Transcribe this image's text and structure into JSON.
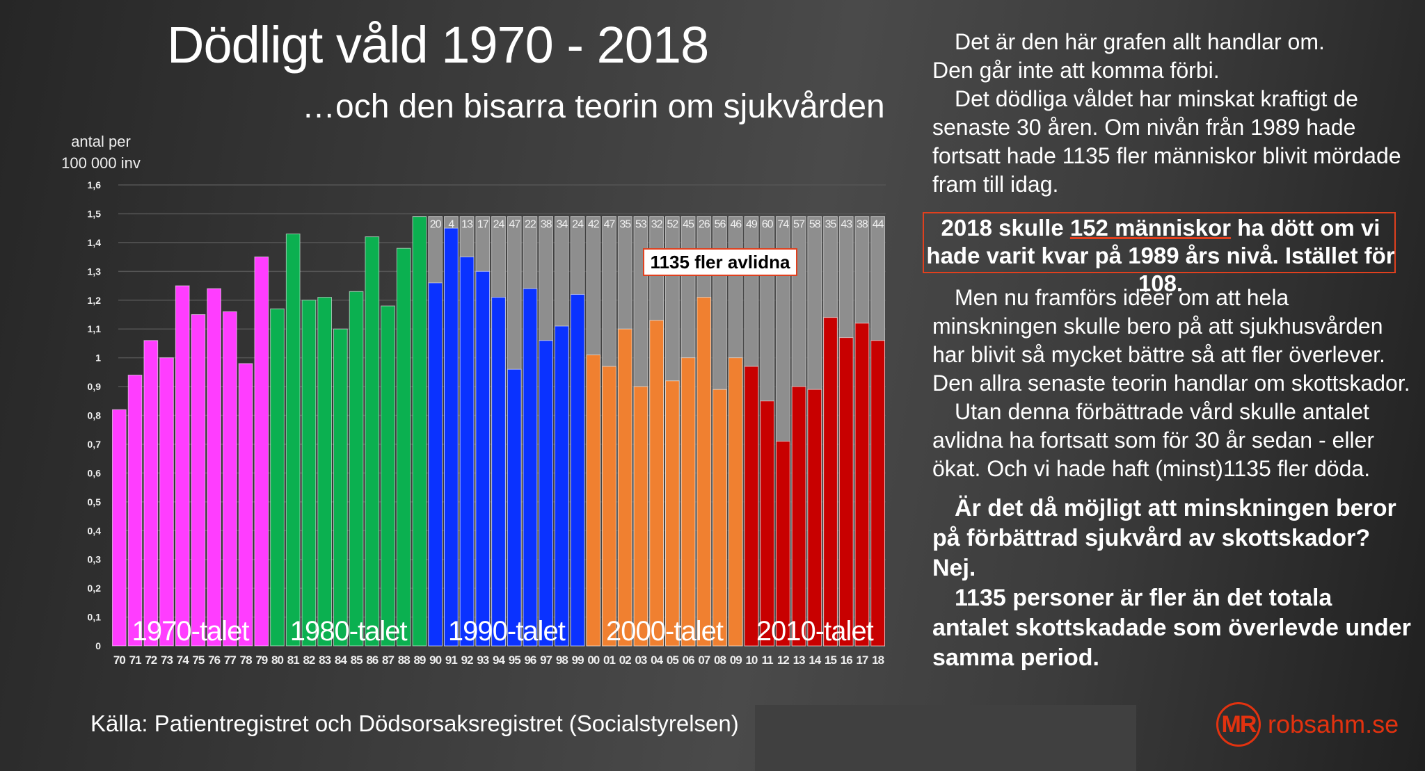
{
  "header": {
    "title": "Dödligt våld 1970 - 2018",
    "subtitle": "…och den bisarra teorin om sjukvården"
  },
  "chart_data": {
    "type": "bar",
    "title": "Dödligt våld 1970 - 2018",
    "ylabel_lines": [
      "antal per",
      "100 000 inv"
    ],
    "xlabel": "",
    "ylim": [
      0,
      1.6
    ],
    "yticks": [
      "0",
      "0,1",
      "0,2",
      "0,3",
      "0,4",
      "0,5",
      "0,6",
      "0,7",
      "0,8",
      "0,9",
      "1",
      "1,1",
      "1,2",
      "1,3",
      "1,4",
      "1,5",
      "1,6"
    ],
    "grid": true,
    "categories": [
      "70",
      "71",
      "72",
      "73",
      "74",
      "75",
      "76",
      "77",
      "78",
      "79",
      "80",
      "81",
      "82",
      "83",
      "84",
      "85",
      "86",
      "87",
      "88",
      "89",
      "90",
      "91",
      "92",
      "93",
      "94",
      "95",
      "96",
      "97",
      "98",
      "99",
      "00",
      "01",
      "02",
      "03",
      "04",
      "05",
      "06",
      "07",
      "08",
      "09",
      "10",
      "11",
      "12",
      "13",
      "14",
      "15",
      "16",
      "17",
      "18"
    ],
    "values": [
      0.82,
      0.94,
      1.06,
      1.0,
      1.25,
      1.15,
      1.24,
      1.16,
      0.98,
      1.35,
      1.17,
      1.43,
      1.2,
      1.21,
      1.1,
      1.23,
      1.42,
      1.18,
      1.38,
      1.49,
      1.26,
      1.45,
      1.35,
      1.3,
      1.21,
      0.96,
      1.24,
      1.06,
      1.11,
      1.22,
      1.01,
      0.97,
      1.1,
      0.9,
      1.13,
      0.92,
      1.0,
      1.21,
      0.89,
      1.0,
      0.97,
      0.85,
      0.71,
      0.9,
      0.89,
      1.14,
      1.07,
      1.12,
      1.06
    ],
    "reference_level": {
      "label": "1989 level",
      "value": 1.49,
      "from_category": "90",
      "color": "#8e8e8e"
    },
    "excess_deaths_labels": [
      "20",
      "4",
      "13",
      "17",
      "24",
      "47",
      "22",
      "38",
      "34",
      "24",
      "42",
      "47",
      "35",
      "53",
      "32",
      "52",
      "45",
      "26",
      "56",
      "46",
      "49",
      "60",
      "74",
      "57",
      "58",
      "35",
      "43",
      "38",
      "44"
    ],
    "decades": [
      {
        "label": "1970-talet",
        "start": 0,
        "end": 9,
        "color": "#ff3dff"
      },
      {
        "label": "1980-talet",
        "start": 10,
        "end": 19,
        "color": "#0bb050"
      },
      {
        "label": "1990-talet",
        "start": 20,
        "end": 29,
        "color": "#0a32ff"
      },
      {
        "label": "2000-talet",
        "start": 30,
        "end": 39,
        "color": "#f08030"
      },
      {
        "label": "2010-talet",
        "start": 40,
        "end": 48,
        "color": "#c80000"
      }
    ],
    "annotation": "1135 fler avlidna",
    "annotation_border": "#e0401e"
  },
  "panel": {
    "p1": [
      "Det är den här grafen allt handlar om.",
      "Den går inte att komma förbi.",
      "Det dödliga våldet har minskat kraftigt de senaste 30 åren. Om nivån från 1989 hade fortsatt hade 1135 fler människor blivit mördade fram till idag."
    ],
    "highlight": {
      "pre": "2018 skulle ",
      "underlined": "152 människor",
      "post": " ha dött om vi hade varit kvar på 1989 års nivå. Istället för 108."
    },
    "p2": [
      "Men nu framförs idéer om att hela minskningen skulle bero på att sjukhusvården har blivit så mycket bättre så att fler överlever. Den allra senaste teorin handlar om skottskador.",
      "Utan denna förbättrade vård skulle antalet avlidna ha fortsatt som för 30 år sedan - eller ökat. Och vi hade haft (minst)1135 fler döda."
    ],
    "p3": [
      "Är det då möjligt att minskningen beror på förbättrad sjukvård av skottskador?",
      "Nej.",
      "1135 personer är fler än det totala antalet skottskadade som överlevde under samma period."
    ]
  },
  "footer": {
    "source": "Källa: Patientregistret och Dödsorsaksregistret (Socialstyrelsen)",
    "logo_mark": "MR",
    "logo_text": "robsahm.se",
    "accent": "#e3320f"
  }
}
